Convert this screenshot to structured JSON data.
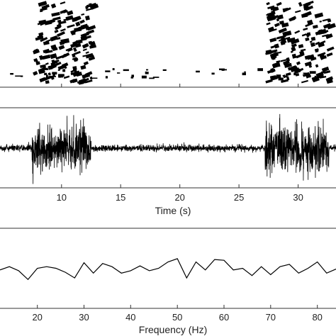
{
  "chart_data": [
    {
      "type": "heatmap",
      "title": "",
      "xlim": [
        4.8,
        33.2
      ],
      "grid": false,
      "colormap": "binary",
      "active_bursts_s": [
        [
          7.5,
          12.5
        ],
        [
          27.2,
          32.6
        ]
      ]
    },
    {
      "type": "line",
      "title": "",
      "xlabel": "Time (s)",
      "ylabel": "",
      "xlim": [
        4.8,
        33.2
      ],
      "xticks": [
        10,
        15,
        20,
        25,
        30
      ],
      "grid": false,
      "bursts_s": [
        [
          7.5,
          12.5
        ],
        [
          27.2,
          32.6
        ]
      ]
    },
    {
      "type": "line",
      "title": "",
      "xlabel": "Frequency (Hz)",
      "ylabel": "",
      "xlim": [
        12,
        84
      ],
      "xticks": [
        20,
        30,
        40,
        50,
        60,
        70,
        80
      ],
      "grid": false,
      "x": [
        12,
        14,
        16,
        18,
        20,
        22,
        24,
        26,
        28,
        30,
        32,
        34,
        36,
        38,
        40,
        42,
        44,
        46,
        48,
        50,
        52,
        54,
        56,
        58,
        60,
        62,
        64,
        66,
        68,
        70,
        72,
        74,
        76,
        78,
        80,
        82,
        84
      ],
      "y": [
        0.48,
        0.52,
        0.47,
        0.36,
        0.5,
        0.52,
        0.5,
        0.45,
        0.38,
        0.57,
        0.44,
        0.56,
        0.52,
        0.44,
        0.47,
        0.53,
        0.47,
        0.5,
        0.58,
        0.62,
        0.38,
        0.58,
        0.48,
        0.61,
        0.6,
        0.48,
        0.5,
        0.41,
        0.52,
        0.42,
        0.52,
        0.55,
        0.44,
        0.5,
        0.58,
        0.44,
        0.49
      ]
    }
  ]
}
